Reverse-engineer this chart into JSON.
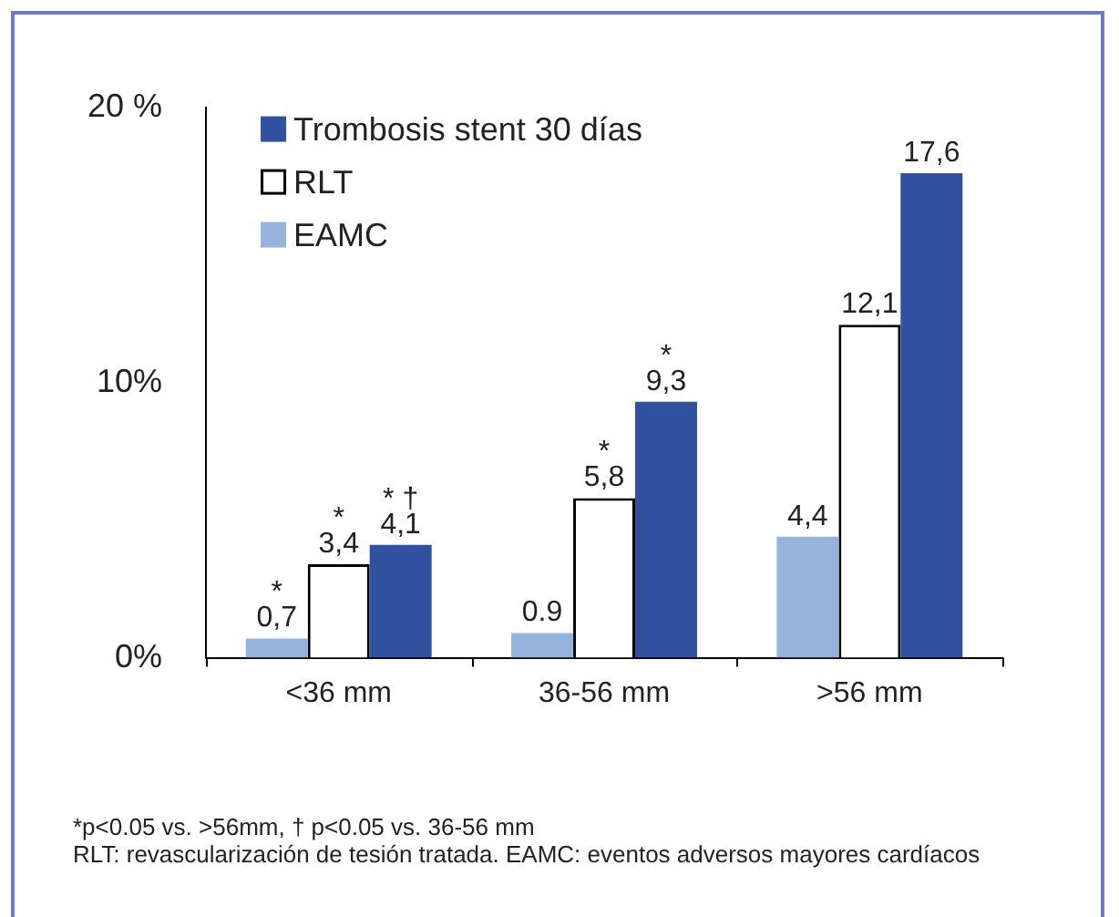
{
  "chart_data": {
    "type": "bar",
    "categories": [
      "<36 mm",
      "36-56 mm",
      ">56 mm"
    ],
    "series": [
      {
        "name": "EAMC",
        "color": "#95b3dd",
        "values": [
          0.7,
          0.9,
          4.4
        ],
        "value_labels": [
          "*\n0,7",
          "0.9",
          "4,4"
        ]
      },
      {
        "name": "RLT",
        "color": "#ffffff",
        "values": [
          3.4,
          5.8,
          12.1
        ],
        "value_labels": [
          "*\n3,4",
          "*\n5,8",
          "12,1"
        ]
      },
      {
        "name": "Trombosis stent 30 días",
        "color": "#3050a0",
        "values": [
          4.1,
          9.3,
          17.6
        ],
        "value_labels": [
          "* †\n4,1",
          "*\n9,3",
          "17,6"
        ]
      }
    ],
    "ylim": [
      0,
      20
    ],
    "yticks": [
      {
        "value": 0,
        "label": "0%"
      },
      {
        "value": 10,
        "label": "10%"
      },
      {
        "value": 20,
        "label": "20 %"
      }
    ],
    "grid": false,
    "legend": "top left",
    "annotations": [
      "*p<0.05 vs. >56mm, † p<0.05 vs. 36-56 mm",
      "RLT: revascularización de tesión tratada. EAMC: eventos adversos mayores cardíacos"
    ]
  }
}
